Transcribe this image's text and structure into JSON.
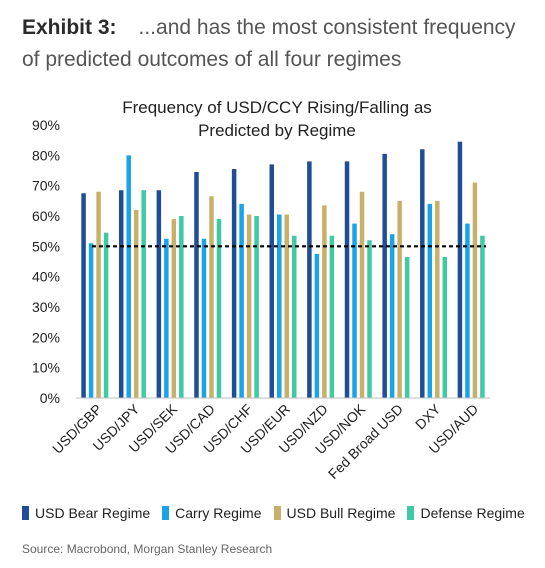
{
  "exhibit": {
    "label": "Exhibit 3:",
    "title": "...and has the most consistent frequency of predicted outcomes of all four regimes"
  },
  "chart_data": {
    "type": "bar",
    "title_line1": "Frequency of USD/CCY Rising/Falling as",
    "title_line2": "Predicted by Regime",
    "categories": [
      "USD/GBP",
      "USD/JPY",
      "USD/SEK",
      "USD/CAD",
      "USD/CHF",
      "USD/EUR",
      "USD/NZD",
      "USD/NOK",
      "Fed Broad USD",
      "DXY",
      "USD/AUD"
    ],
    "ylim": [
      0,
      90
    ],
    "yticks": [
      0,
      10,
      20,
      30,
      40,
      50,
      60,
      70,
      80,
      90
    ],
    "ytick_labels": [
      "0%",
      "10%",
      "20%",
      "30%",
      "40%",
      "50%",
      "60%",
      "70%",
      "80%",
      "90%"
    ],
    "reference_line": 50,
    "grid": false,
    "legend_position": "bottom",
    "series": [
      {
        "name": "USD Bear Regime",
        "color": "#1f4e96",
        "values": [
          67.5,
          68.5,
          68.5,
          74.5,
          75.5,
          77,
          78,
          78,
          80.5,
          82,
          84.5
        ]
      },
      {
        "name": "Carry Regime",
        "color": "#1aa3e8",
        "values": [
          51,
          80,
          52.5,
          52.5,
          64,
          60.5,
          47.5,
          57.5,
          54,
          64,
          57.5
        ]
      },
      {
        "name": "USD Bull Regime",
        "color": "#c9b06a",
        "values": [
          68,
          62,
          59,
          66.5,
          60.5,
          60.5,
          63.5,
          68,
          65,
          65,
          71
        ]
      },
      {
        "name": "Defense Regime",
        "color": "#3fc9a4",
        "values": [
          54.5,
          68.5,
          60,
          59,
          60,
          53.5,
          53.5,
          52,
          46.5,
          46.5,
          53.5
        ]
      }
    ]
  },
  "source": "Source: Macrobond, Morgan Stanley Research"
}
